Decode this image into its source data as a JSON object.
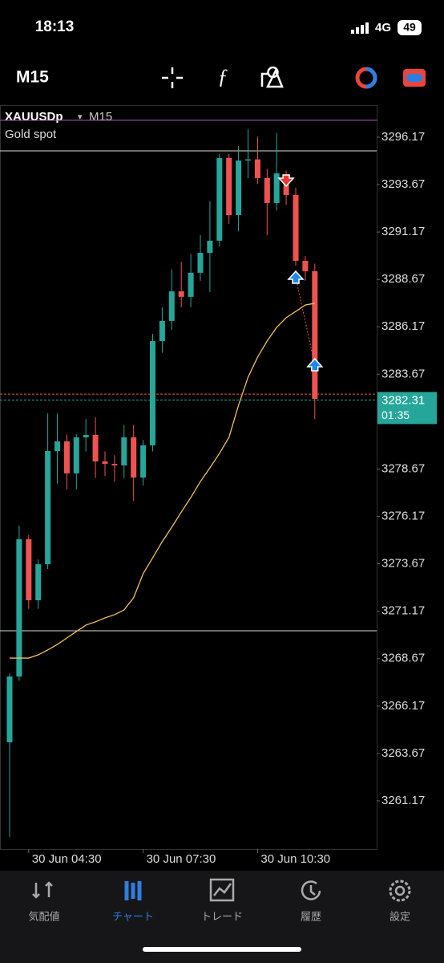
{
  "status_bar": {
    "time": "18:13",
    "network": "4G",
    "battery": "49"
  },
  "toolbar": {
    "timeframe": "M15"
  },
  "chart_data": {
    "type": "candlestick",
    "symbol": "XAUUSDp",
    "dropdown": "▾",
    "timeframe": "M15",
    "description": "Gold spot",
    "up_color": "#26a69a",
    "down_color": "#ef5350",
    "ma_color": "#f0c060",
    "ylim": [
      3258.63,
      3297.86
    ],
    "yticks": [
      3296.17,
      3293.67,
      3291.17,
      3288.67,
      3286.17,
      3283.67,
      3278.67,
      3276.17,
      3273.67,
      3271.17,
      3268.67,
      3266.17,
      3263.67,
      3261.17
    ],
    "xticks": [
      {
        "value": 2,
        "label": "30 Jun 04:30"
      },
      {
        "value": 14,
        "label": "30 Jun 07:30"
      },
      {
        "value": 26,
        "label": "30 Jun 10:30"
      }
    ],
    "open": [
      3264.26,
      3267.73,
      3274.97,
      3271.75,
      3273.65,
      3279.62,
      3280.13,
      3278.44,
      3280.34,
      3280.47,
      3279.07,
      3278.94,
      3278.86,
      3280.34,
      3278.22,
      3279.92,
      3285.42,
      3286.48,
      3288.04,
      3287.75,
      3289.02,
      3290.07,
      3290.71,
      3295.07,
      3292.06,
      3294.94,
      3295.0,
      3294.01,
      3292.7,
      3293.67,
      3293.12,
      3289.65,
      3289.1
    ],
    "high": [
      3267.9,
      3275.69,
      3275.2,
      3273.9,
      3281.6,
      3281.6,
      3280.5,
      3280.5,
      3281.3,
      3281.4,
      3279.6,
      3279.4,
      3281.0,
      3281.0,
      3280.2,
      3285.8,
      3287.2,
      3289.2,
      3289.6,
      3290.0,
      3291.0,
      3292.8,
      3295.3,
      3295.3,
      3295.7,
      3296.6,
      3296.2,
      3294.5,
      3296.4,
      3294.4,
      3293.5,
      3289.9,
      3289.5
    ],
    "low": [
      3259.27,
      3267.5,
      3271.3,
      3271.3,
      3273.4,
      3277.9,
      3277.6,
      3277.6,
      3279.6,
      3278.2,
      3278.3,
      3278.0,
      3278.2,
      3277.0,
      3277.8,
      3279.6,
      3284.8,
      3286.0,
      3287.2,
      3287.2,
      3288.6,
      3288.0,
      3290.4,
      3291.6,
      3291.2,
      3294.0,
      3293.7,
      3291.0,
      3292.3,
      3292.6,
      3289.4,
      3288.6,
      3281.3
    ],
    "close": [
      3267.73,
      3274.97,
      3271.75,
      3273.65,
      3279.62,
      3280.13,
      3278.44,
      3280.34,
      3280.47,
      3279.07,
      3278.94,
      3278.86,
      3280.34,
      3278.22,
      3279.92,
      3285.42,
      3286.48,
      3288.04,
      3287.75,
      3289.02,
      3290.07,
      3290.71,
      3295.07,
      3292.06,
      3294.94,
      3295.0,
      3294.01,
      3292.7,
      3294.26,
      3293.12,
      3289.65,
      3289.1,
      3282.37
    ],
    "ma": [
      3268.7,
      3268.7,
      3268.7,
      3268.87,
      3269.13,
      3269.42,
      3269.76,
      3270.1,
      3270.44,
      3270.61,
      3270.82,
      3270.99,
      3271.24,
      3271.88,
      3273.15,
      3273.99,
      3274.84,
      3275.6,
      3276.4,
      3277.17,
      3278.01,
      3278.73,
      3279.49,
      3280.34,
      3282.03,
      3283.51,
      3284.57,
      3285.42,
      3286.14,
      3286.65,
      3286.98,
      3287.32,
      3287.41
    ],
    "levels": [
      {
        "value": 3297.06,
        "color": "#b060c0"
      },
      {
        "value": 3295.45,
        "color": "#dddddd"
      },
      {
        "value": 3270.14,
        "color": "#dddddd"
      }
    ],
    "ask": {
      "value": 3282.62,
      "color": "#ef5350"
    },
    "bid": {
      "value": 3282.31,
      "color": "#26a69a",
      "countdown": "01:35"
    },
    "trades": [
      {
        "side": "sell",
        "index": 29,
        "price": 3293.67
      },
      {
        "side": "buy",
        "index": 30,
        "price": 3288.76
      },
      {
        "side": "buy",
        "index": 32,
        "price": 3284.15
      }
    ]
  },
  "nav": [
    {
      "label": "気配値"
    },
    {
      "label": "チャート"
    },
    {
      "label": "トレード"
    },
    {
      "label": "履歴"
    },
    {
      "label": "設定"
    }
  ]
}
